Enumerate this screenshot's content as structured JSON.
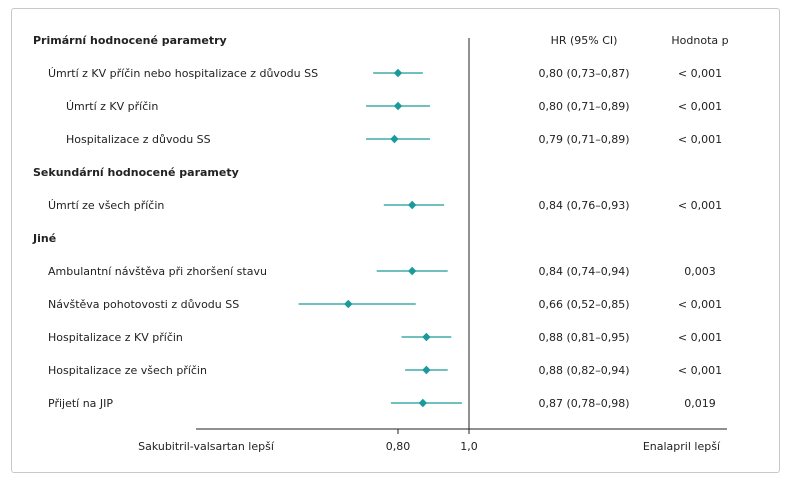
{
  "chart_data": {
    "type": "forest",
    "columns": {
      "hr": "HR (95% CI)",
      "p": "Hodnota p"
    },
    "x_axis": {
      "ticks": [
        {
          "value": 0.8,
          "label": "0,80"
        },
        {
          "value": 1.0,
          "label": "1,0"
        }
      ],
      "left_label": "Sakubitril-valsartan lepší",
      "right_label": "Enalapril lepší",
      "reference_line": 1.0
    },
    "accent": "#1a9a9a",
    "rows": [
      {
        "kind": "section",
        "label": "Primární hodnocené parametry"
      },
      {
        "kind": "item",
        "indent": 1,
        "label": "Úmrtí z KV příčin nebo hospitalizace z důvodu SS",
        "hr": 0.8,
        "lo": 0.73,
        "hi": 0.87,
        "hr_text": "0,80 (0,73–0,87)",
        "p_text": "< 0,001"
      },
      {
        "kind": "item",
        "indent": 2,
        "label": "Úmrtí z KV příčin",
        "hr": 0.8,
        "lo": 0.71,
        "hi": 0.89,
        "hr_text": "0,80 (0,71–0,89)",
        "p_text": "< 0,001"
      },
      {
        "kind": "item",
        "indent": 2,
        "label": "Hospitalizace z důvodu SS",
        "hr": 0.79,
        "lo": 0.71,
        "hi": 0.89,
        "hr_text": "0,79 (0,71–0,89)",
        "p_text": "< 0,001"
      },
      {
        "kind": "section",
        "label": "Sekundární hodnocené paramety"
      },
      {
        "kind": "item",
        "indent": 1,
        "label": "Úmrtí ze všech příčin",
        "hr": 0.84,
        "lo": 0.76,
        "hi": 0.93,
        "hr_text": "0,84 (0,76–0,93)",
        "p_text": "< 0,001"
      },
      {
        "kind": "section",
        "label": "Jiné"
      },
      {
        "kind": "item",
        "indent": 1,
        "label": "Ambulantní návštěva při zhoršení stavu",
        "hr": 0.84,
        "lo": 0.74,
        "hi": 0.94,
        "hr_text": "0,84 (0,74–0,94)",
        "p_text": "0,003"
      },
      {
        "kind": "item",
        "indent": 1,
        "label": "Návštěva pohotovosti z důvodu SS",
        "hr": 0.66,
        "lo": 0.52,
        "hi": 0.85,
        "hr_text": "0,66 (0,52–0,85)",
        "p_text": "< 0,001"
      },
      {
        "kind": "item",
        "indent": 1,
        "label": "Hospitalizace z KV příčin",
        "hr": 0.88,
        "lo": 0.81,
        "hi": 0.95,
        "hr_text": "0,88 (0,81–0,95)",
        "p_text": "< 0,001"
      },
      {
        "kind": "item",
        "indent": 1,
        "label": "Hospitalizace ze všech příčin",
        "hr": 0.88,
        "lo": 0.82,
        "hi": 0.94,
        "hr_text": "0,88 (0,82–0,94)",
        "p_text": "< 0,001"
      },
      {
        "kind": "item",
        "indent": 1,
        "label": "Přijetí na JIP",
        "hr": 0.87,
        "lo": 0.78,
        "hi": 0.98,
        "hr_text": "0,87 (0,78–0,98)",
        "p_text": "0,019"
      }
    ]
  }
}
